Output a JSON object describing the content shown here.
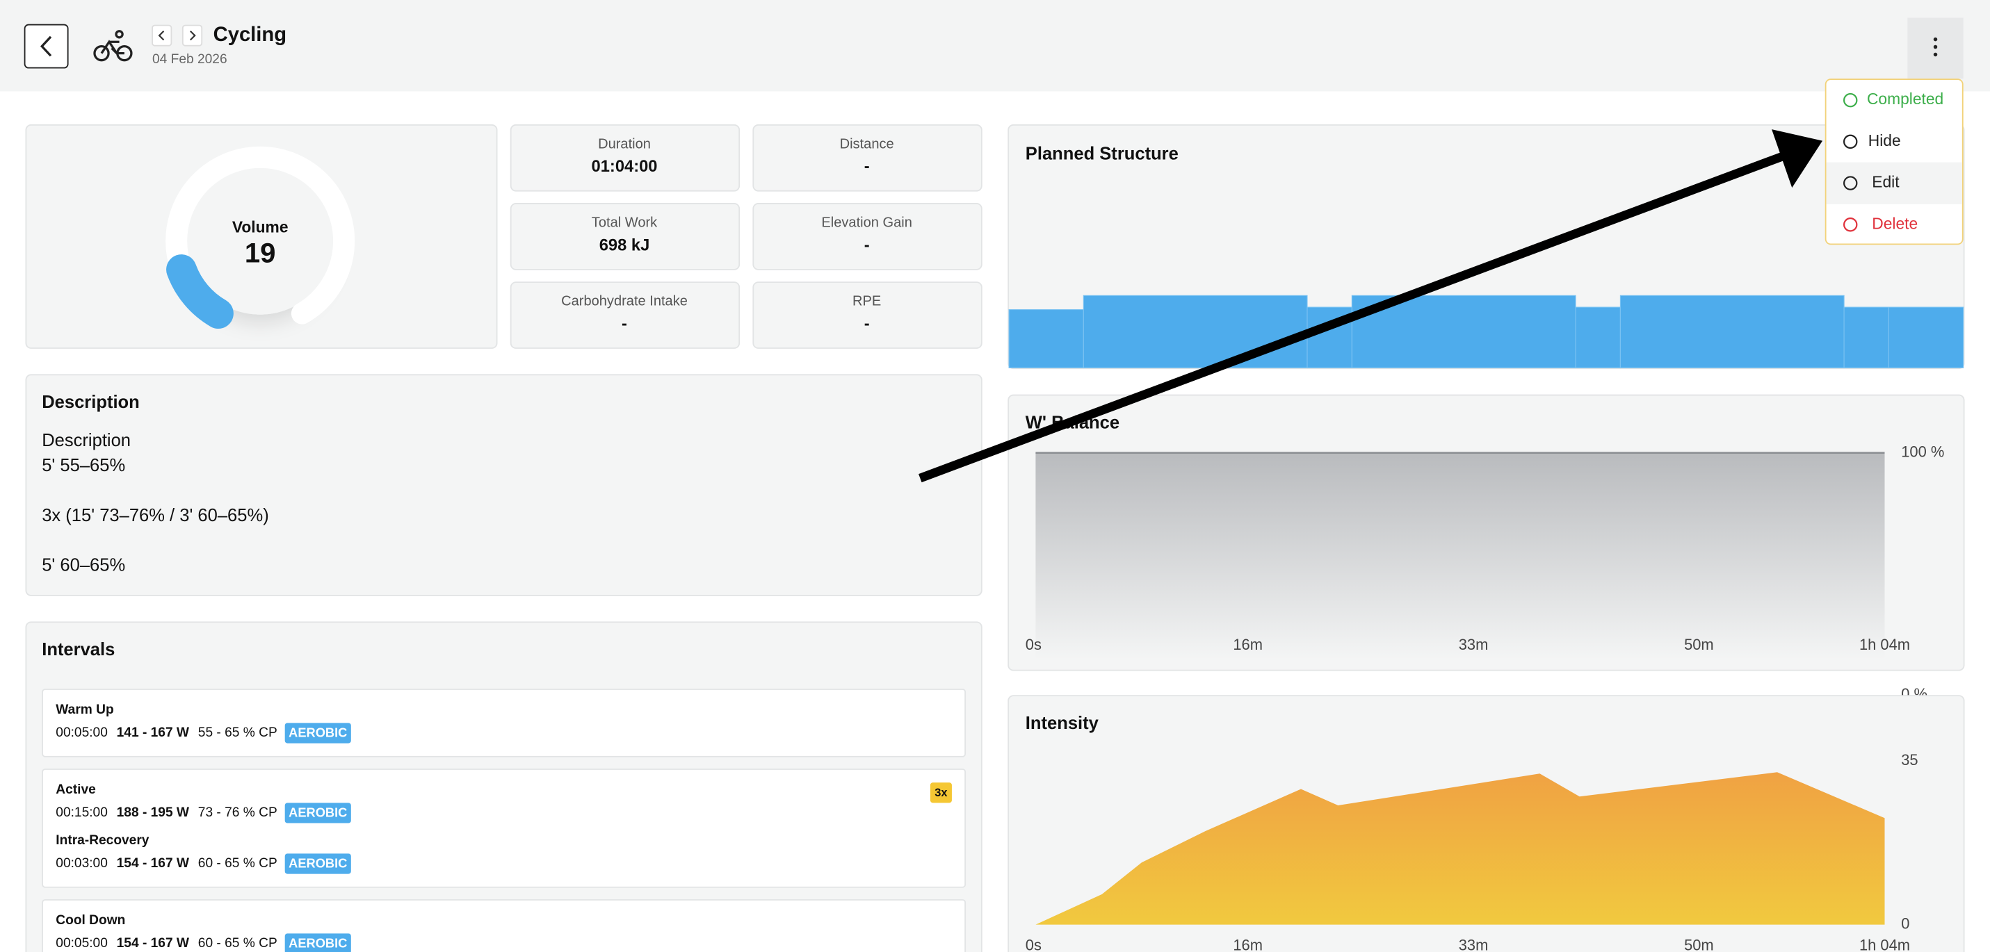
{
  "header": {
    "title": "Cycling",
    "date": "04 Feb 2026"
  },
  "menu": [
    "Completed",
    "Hide",
    "Edit",
    "Delete"
  ],
  "volume": {
    "label": "Volume",
    "value": 19
  },
  "stats": [
    {
      "label": "Duration",
      "value": "01:04:00"
    },
    {
      "label": "Distance",
      "value": "-"
    },
    {
      "label": "Total Work",
      "value": "698 kJ"
    },
    {
      "label": "Elevation Gain",
      "value": "-"
    },
    {
      "label": "Carbohydrate Intake",
      "value": "-"
    },
    {
      "label": "RPE",
      "value": "-"
    }
  ],
  "description": {
    "title": "Description",
    "paragraphs": [
      [
        "Description",
        "5' 55–65%"
      ],
      [
        "3x (15' 73–76% / 3' 60–65%)"
      ],
      [
        "5' 60–65%"
      ]
    ]
  },
  "intervals": {
    "title": "Intervals",
    "groups": [
      {
        "steps": [
          {
            "name": "Warm Up",
            "duration": "00:05:00",
            "watts": "141 - 167 W",
            "percent": "55 - 65 % CP",
            "zone": "AEROBIC"
          }
        ]
      },
      {
        "repeat": "3x",
        "steps": [
          {
            "name": "Active",
            "duration": "00:15:00",
            "watts": "188 - 195 W",
            "percent": "73 - 76 % CP",
            "zone": "AEROBIC"
          },
          {
            "name": "Intra-Recovery",
            "duration": "00:03:00",
            "watts": "154 - 167 W",
            "percent": "60 - 65 % CP",
            "zone": "AEROBIC"
          }
        ]
      },
      {
        "steps": [
          {
            "name": "Cool Down",
            "duration": "00:05:00",
            "watts": "154 - 167 W",
            "percent": "60 - 65 % CP",
            "zone": "AEROBIC"
          }
        ]
      }
    ]
  },
  "planned_structure": {
    "title": "Planned Structure",
    "color": "#4eacec",
    "segments": [
      {
        "minutes": 5,
        "percent": 60
      },
      {
        "minutes": 15,
        "percent": 74.5
      },
      {
        "minutes": 3,
        "percent": 62.5
      },
      {
        "minutes": 15,
        "percent": 74.5
      },
      {
        "minutes": 3,
        "percent": 62.5
      },
      {
        "minutes": 15,
        "percent": 74.5
      },
      {
        "minutes": 3,
        "percent": 62.5
      },
      {
        "minutes": 5,
        "percent": 62.5
      }
    ]
  },
  "w_balance": {
    "title": "W' Balance",
    "x": [
      0,
      64
    ],
    "values": [
      100,
      100
    ],
    "xlim": [
      0,
      64
    ],
    "ylim": [
      0,
      100
    ],
    "yticks": [
      {
        "value": 0,
        "label": "0 %"
      },
      {
        "value": 100,
        "label": "100 %"
      }
    ],
    "xticks": [
      {
        "value": 0,
        "label": "0s"
      },
      {
        "value": 16,
        "label": "16m"
      },
      {
        "value": 33,
        "label": "33m"
      },
      {
        "value": 50,
        "label": "50m"
      },
      {
        "value": 64,
        "label": "1h 04m"
      }
    ]
  },
  "intensity": {
    "title": "Intensity",
    "x": [
      0,
      5,
      8,
      12.8,
      20,
      22.8,
      38,
      41,
      55.9,
      64
    ],
    "values": [
      0,
      6.5,
      13.3,
      20,
      29,
      25.5,
      32.3,
      27.4,
      32.6,
      22.8
    ],
    "xlim": [
      0,
      64
    ],
    "ylim": [
      0,
      35
    ],
    "yticks": [
      0,
      35
    ],
    "xticks": [
      {
        "value": 0,
        "label": "0s"
      },
      {
        "value": 16,
        "label": "16m"
      },
      {
        "value": 33,
        "label": "33m"
      },
      {
        "value": 50,
        "label": "50m"
      },
      {
        "value": 64,
        "label": "1h 04m"
      }
    ]
  }
}
